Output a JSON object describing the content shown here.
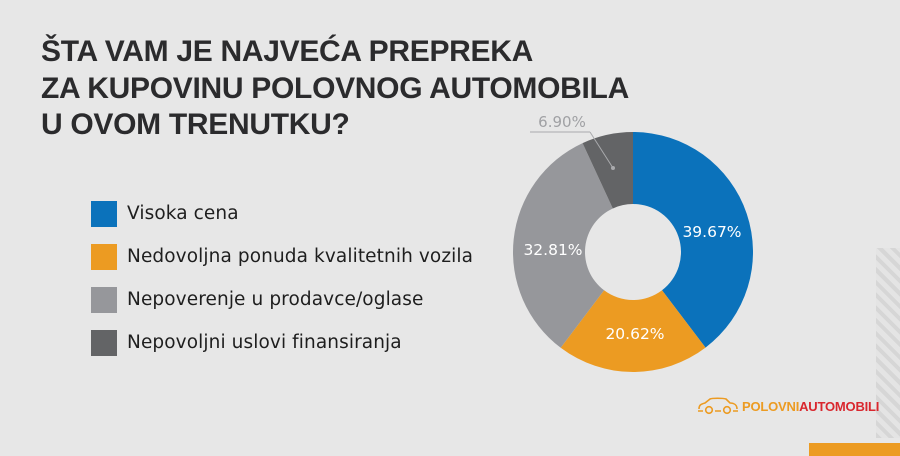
{
  "title": {
    "line1": "ŠTA VAM JE NAJVEĆA PREPREKA",
    "line2": "ZA KUPOVINU POLOVNOG AUTOMOBILA",
    "line3": "U OVOM TRENUTKU?"
  },
  "legend": [
    {
      "label": "Visoka cena",
      "color": "#0b72bb"
    },
    {
      "label": "Nedovoljna ponuda kvalitetnih vozila",
      "color": "#ec9b22"
    },
    {
      "label": "Nepoverenje u prodavce/oglase",
      "color": "#96979b"
    },
    {
      "label": "Nepovoljni uslovi finansiranja",
      "color": "#636466"
    }
  ],
  "chart_data": {
    "type": "pie",
    "subtype": "donut",
    "title": "ŠTA VAM JE NAJVEĆA PREPREKA ZA KUPOVINU POLOVNOG AUTOMOBILA U OVOM TRENUTKU?",
    "categories": [
      "Visoka cena",
      "Nedovoljna ponuda kvalitetnih vozila",
      "Nepoverenje u prodavce/oglase",
      "Nepovoljni uslovi finansiranja"
    ],
    "values": [
      39.67,
      20.62,
      32.81,
      6.9
    ],
    "labels": [
      "39.67%",
      "20.62%",
      "32.81%",
      "6.90%"
    ],
    "colors": [
      "#0b72bb",
      "#ec9b22",
      "#96979b",
      "#636466"
    ],
    "start_angle": "12 o'clock",
    "direction": "clockwise",
    "legend_position": "left"
  },
  "logo": {
    "part1": "POLOVNI",
    "part2": "AUTOMOBILI"
  }
}
